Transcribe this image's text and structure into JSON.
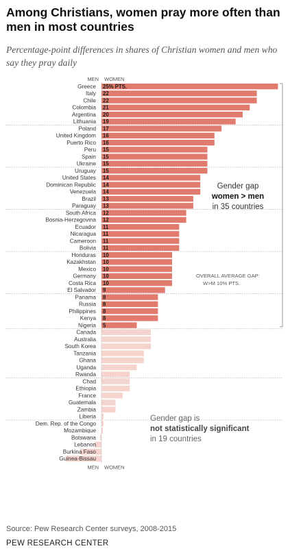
{
  "title": "Among Christians, women pray more often than men in most countries",
  "subtitle": "Percentage-point differences in shares of Christian women and men who say they pray daily",
  "source": "Source: Pew Research Center surveys, 2008-2015",
  "brand": "PEW RESEARCH CENTER",
  "chart_data": {
    "type": "bar",
    "orientation": "horizontal",
    "axis_label_top": {
      "men": "MEN",
      "women": "WOMEN"
    },
    "axis_label_bottom": {
      "men": "MEN",
      "women": "WOMEN"
    },
    "first_label_suffix": "% PTS.",
    "categories": [
      "Greece",
      "Italy",
      "Chile",
      "Colombia",
      "Argentina",
      "Lithuania",
      "Poland",
      "United Kingdom",
      "Puerto Rico",
      "Peru",
      "Spain",
      "Ukraine",
      "Uruguay",
      "United States",
      "Dominican Republic",
      "Venezuela",
      "Brazil",
      "Paraguay",
      "South Africa",
      "Bosnia-Herzegovina",
      "Ecuador",
      "Nicaragua",
      "Cameroon",
      "Bolivia",
      "Honduras",
      "Kazakhstan",
      "Mexico",
      "Germany",
      "Costa Rica",
      "El Salvador",
      "Panama",
      "Russia",
      "Philippines",
      "Kenya",
      "Nigeria",
      "Canada",
      "Australia",
      "South Korea",
      "Tanzania",
      "Ghana",
      "Uganda",
      "Rwanda",
      "Chad",
      "Ethiopia",
      "France",
      "Guatemala",
      "Zambia",
      "Liberia",
      "Dem. Rep. of the Congo",
      "Mozambique",
      "Botswana",
      "Lebanon",
      "Burkina Faso",
      "Guinea-Bissau"
    ],
    "values": [
      25,
      22,
      22,
      21,
      20,
      19,
      17,
      16,
      16,
      15,
      15,
      15,
      15,
      14,
      14,
      14,
      13,
      13,
      12,
      12,
      11,
      11,
      11,
      11,
      10,
      10,
      10,
      10,
      10,
      9,
      8,
      8,
      8,
      8,
      5,
      7,
      7,
      7,
      6,
      6,
      5,
      4,
      4,
      4,
      3,
      2,
      2,
      0.3,
      0.3,
      0.2,
      -0.2,
      -1,
      -3,
      -5
    ],
    "significant_count": 35,
    "group_sizes": [
      6,
      6,
      6,
      6,
      6,
      5,
      7,
      6,
      6
    ],
    "colors": {
      "significant": "#e07b6e",
      "not_significant": "#f6d4ce",
      "divider": "#b5b5b5",
      "bracket": "#999999"
    },
    "annotations": {
      "significant": {
        "line1": "Gender gap",
        "bold": "women > men",
        "line3": "in 35 countries"
      },
      "average": {
        "line1": "OVERALL AVERAGE GAP:",
        "line2": "W>M 10% PTS."
      },
      "not_significant": {
        "line1": "Gender gap is",
        "bold": "not statistically significant",
        "line3": "in 19 countries"
      }
    }
  }
}
